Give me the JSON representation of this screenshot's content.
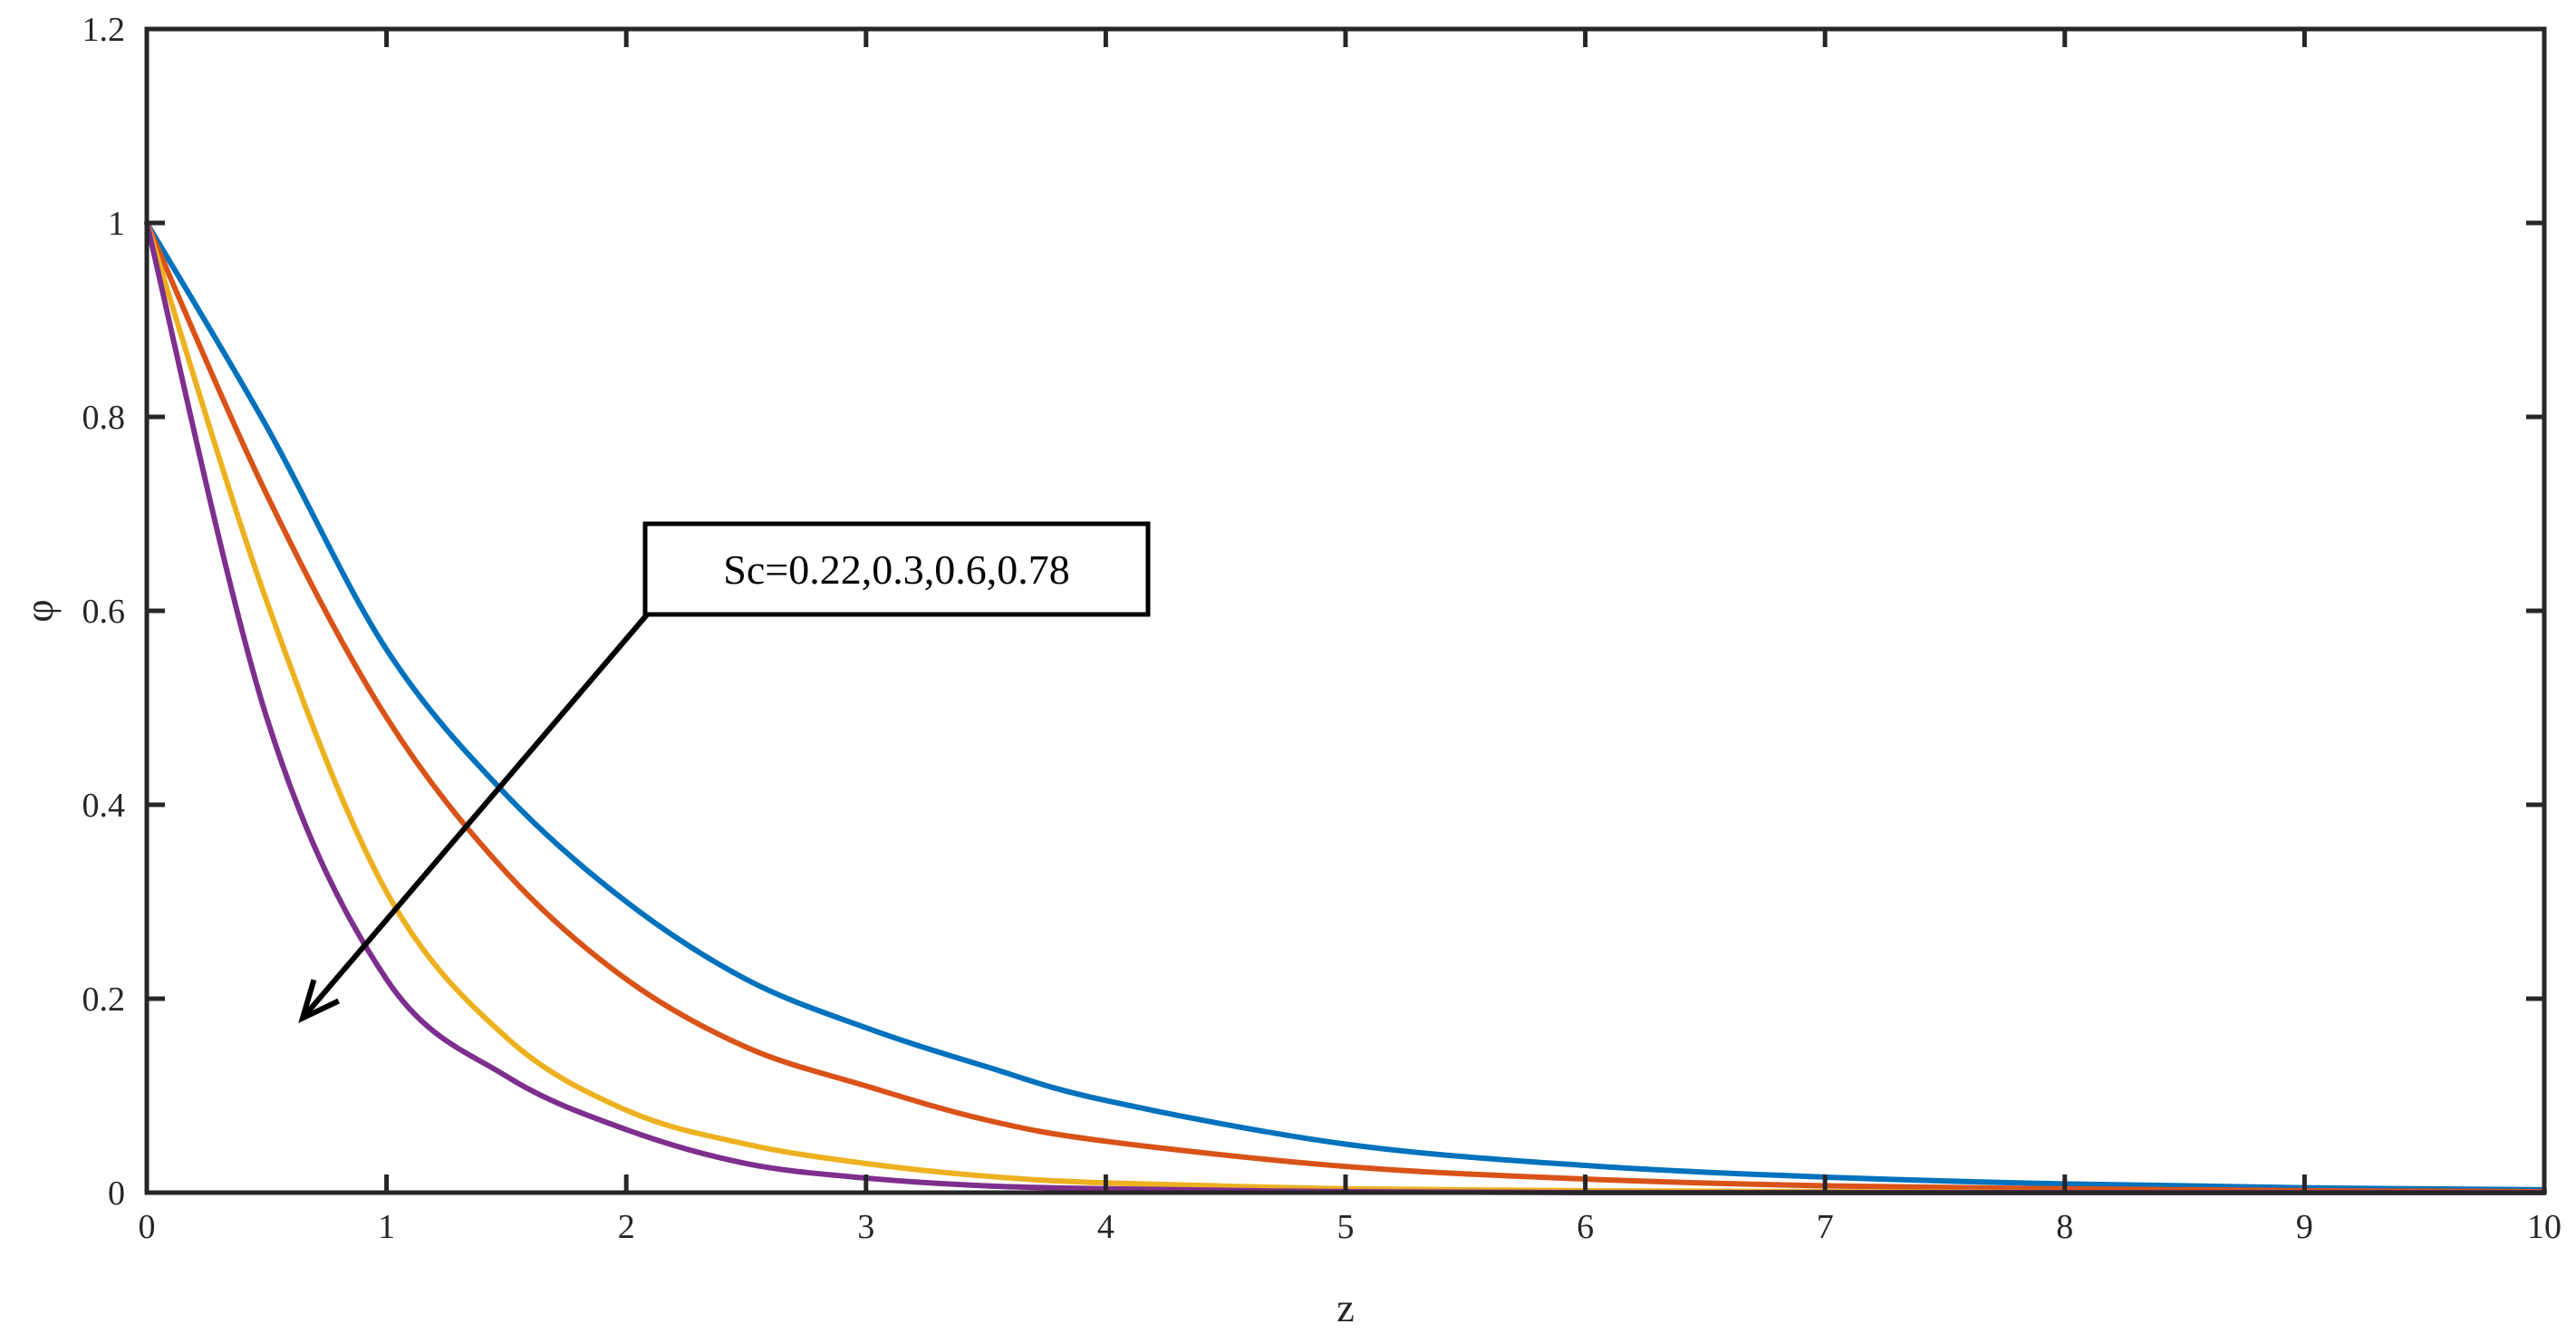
{
  "chart_data": {
    "type": "line",
    "xlabel": "z",
    "ylabel": "φ",
    "xlim": [
      0,
      10
    ],
    "ylim": [
      0,
      1.2
    ],
    "xticks": [
      "0",
      "1",
      "2",
      "3",
      "4",
      "5",
      "6",
      "7",
      "8",
      "9",
      "10"
    ],
    "yticks": [
      "0",
      "0.2",
      "0.4",
      "0.6",
      "0.8",
      "1",
      "1.2"
    ],
    "grid": false,
    "annotation": {
      "text": "Sc=0.22,0.3,0.6,0.78",
      "arrow_from": [
        2.1,
        0.6
      ],
      "arrow_to": [
        0.65,
        0.18
      ]
    },
    "x": [
      0,
      0.5,
      1,
      1.5,
      2,
      2.5,
      3,
      3.5,
      4,
      5,
      6,
      7,
      8,
      9,
      10
    ],
    "series": [
      {
        "color": "#0072BD",
        "values": [
          1.0,
          0.79,
          0.56,
          0.41,
          0.3,
          0.22,
          0.17,
          0.13,
          0.095,
          0.05,
          0.028,
          0.016,
          0.009,
          0.005,
          0.003
        ]
      },
      {
        "color": "#D95319",
        "values": [
          1.0,
          0.72,
          0.49,
          0.33,
          0.22,
          0.15,
          0.11,
          0.075,
          0.053,
          0.027,
          0.014,
          0.007,
          0.004,
          0.002,
          0.001
        ]
      },
      {
        "color": "#EDB120",
        "values": [
          1.0,
          0.61,
          0.31,
          0.16,
          0.085,
          0.05,
          0.03,
          0.017,
          0.01,
          0.004,
          0.002,
          0.001,
          0.0,
          0.0,
          0.0
        ]
      },
      {
        "color": "#7E2F8E",
        "values": [
          1.0,
          0.49,
          0.22,
          0.12,
          0.065,
          0.03,
          0.015,
          0.007,
          0.004,
          0.001,
          0.0,
          0.0,
          0.0,
          0.0,
          0.0
        ]
      }
    ]
  }
}
